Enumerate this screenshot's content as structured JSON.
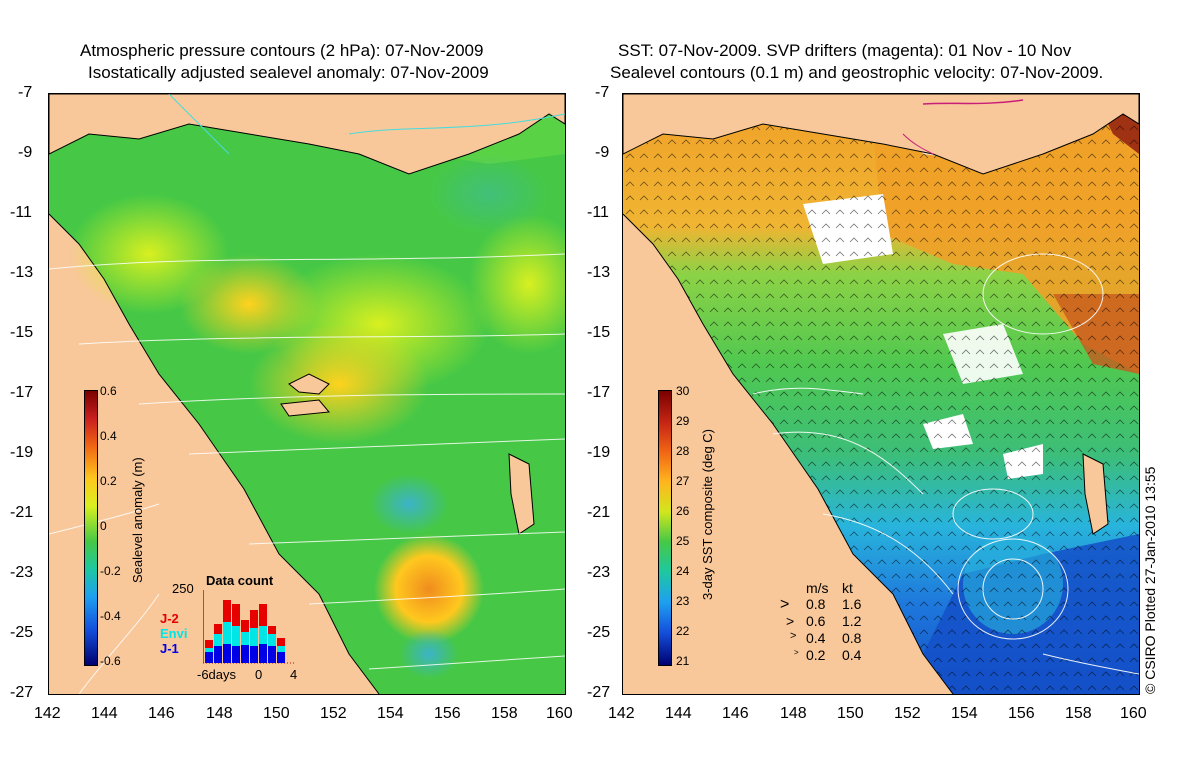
{
  "left_panel": {
    "title_line1": "Atmospheric pressure contours (2 hPa): 07-Nov-2009",
    "title_line2": "Isostatically adjusted sealevel anomaly: 07-Nov-2009",
    "colorbar": {
      "label": "Sealevel anomaly (m)",
      "ticks": [
        "0.6",
        "0.4",
        "0.2",
        "0",
        "-0.2",
        "-0.4",
        "-0.6"
      ],
      "range": [
        -0.6,
        0.6
      ]
    },
    "data_count": {
      "title": "Data count",
      "ymax_label": "250",
      "x_labels": [
        "-6days",
        "0",
        "4"
      ],
      "series_labels": [
        {
          "name": "J-2",
          "color": "#e60000"
        },
        {
          "name": "Envi",
          "color": "#00e6e6"
        },
        {
          "name": "J-1",
          "color": "#0000e6"
        }
      ]
    }
  },
  "right_panel": {
    "title_line1": "SST: 07-Nov-2009. SVP drifters (magenta): 01 Nov - 10 Nov",
    "title_line2": "Sealevel contours (0.1 m) and geostrophic velocity: 07-Nov-2009.",
    "colorbar": {
      "label": "3-day SST composite (deg C)",
      "ticks": [
        "30",
        "29",
        "28",
        "27",
        "26",
        "25",
        "24",
        "23",
        "22",
        "21"
      ],
      "range": [
        21,
        30
      ]
    },
    "velocity_legend": {
      "header_ms": "m/s",
      "header_kt": "kt",
      "rows": [
        {
          "ms": "0.8",
          "kt": "1.6"
        },
        {
          "ms": "0.6",
          "kt": "1.2"
        },
        {
          "ms": "0.4",
          "kt": "0.8"
        },
        {
          "ms": "0.2",
          "kt": "0.4"
        }
      ]
    },
    "credit": "© CSIRO Plotted 27-Jan-2010 13:55"
  },
  "axes": {
    "y_ticks": [
      "-7",
      "-9",
      "-11",
      "-13",
      "-15",
      "-17",
      "-19",
      "-21",
      "-23",
      "-25",
      "-27"
    ],
    "x_ticks": [
      "142",
      "144",
      "146",
      "148",
      "150",
      "152",
      "154",
      "156",
      "158",
      "160"
    ]
  },
  "colors": {
    "land": "#f8c79a",
    "sla_mid": "#3cc83c",
    "sst_warm": "#f0a020",
    "sst_cool": "#28b4dc",
    "sst_cold": "#1450c8"
  }
}
